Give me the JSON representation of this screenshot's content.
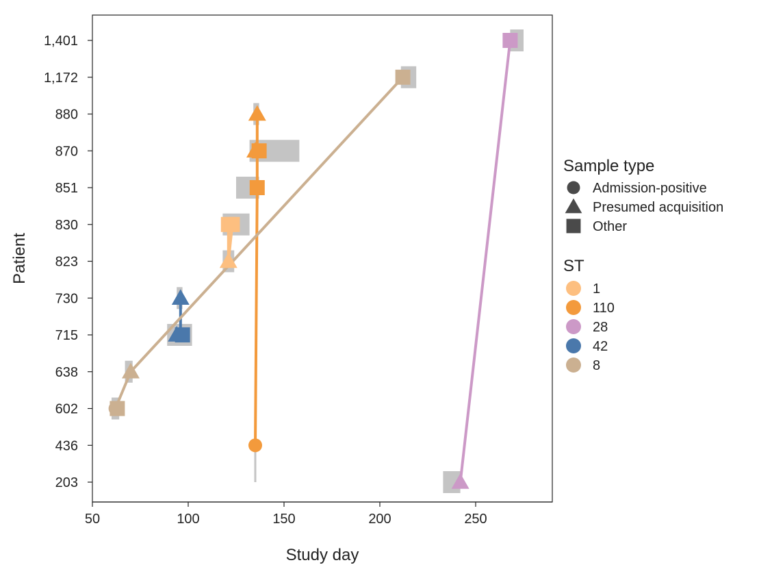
{
  "chart_data": {
    "type": "scatter",
    "xlabel": "Study day",
    "ylabel": "Patient",
    "xlim": [
      50,
      290
    ],
    "x_ticks": [
      50,
      100,
      150,
      200,
      250
    ],
    "y_categories": [
      "203",
      "436",
      "602",
      "638",
      "715",
      "730",
      "823",
      "830",
      "851",
      "870",
      "880",
      "1,172",
      "1,401"
    ],
    "grid": false,
    "legend_position": "right",
    "sample_type_legend": {
      "title": "Sample type",
      "items": [
        {
          "label": "Admission-positive",
          "shape": "circle"
        },
        {
          "label": "Presumed acquisition",
          "shape": "triangle"
        },
        {
          "label": "Other",
          "shape": "square"
        }
      ]
    },
    "st_legend": {
      "title": "ST",
      "items": [
        {
          "label": "1",
          "color": "#fdbf80"
        },
        {
          "label": "110",
          "color": "#f39a3c"
        },
        {
          "label": "28",
          "color": "#cc99c7"
        },
        {
          "label": "42",
          "color": "#4a78ab"
        },
        {
          "label": "8",
          "color": "#cbb091"
        }
      ]
    },
    "stays": [
      {
        "patient": "203",
        "start": 233,
        "end": 242
      },
      {
        "patient": "436",
        "start": 134,
        "end": 136,
        "whisker": [
          "203",
          "602"
        ]
      },
      {
        "patient": "602",
        "start": 60,
        "end": 64
      },
      {
        "patient": "638",
        "start": 67,
        "end": 71
      },
      {
        "patient": "715",
        "start": 89,
        "end": 102
      },
      {
        "patient": "730",
        "start": 94,
        "end": 97
      },
      {
        "patient": "823",
        "start": 118,
        "end": 124
      },
      {
        "patient": "830",
        "start": 118,
        "end": 132
      },
      {
        "patient": "851",
        "start": 125,
        "end": 137
      },
      {
        "patient": "870",
        "start": 132,
        "end": 158
      },
      {
        "patient": "880",
        "start": 134,
        "end": 137
      },
      {
        "patient": "1,172",
        "start": 211,
        "end": 219
      },
      {
        "patient": "1,401",
        "start": 268,
        "end": 275
      }
    ],
    "series": [
      {
        "name": "1",
        "color": "#fdbf80",
        "points": [
          {
            "x": 121,
            "y": "830",
            "shape": "square"
          },
          {
            "x": 123,
            "y": "830",
            "shape": "square"
          },
          {
            "x": 121,
            "y": "823",
            "shape": "triangle"
          }
        ]
      },
      {
        "name": "110",
        "color": "#f39a3c",
        "points": [
          {
            "x": 135,
            "y": "436",
            "shape": "circle"
          },
          {
            "x": 136,
            "y": "851",
            "shape": "square"
          },
          {
            "x": 137,
            "y": "870",
            "shape": "square"
          },
          {
            "x": 135,
            "y": "870",
            "shape": "triangle"
          },
          {
            "x": 136,
            "y": "880",
            "shape": "triangle"
          }
        ]
      },
      {
        "name": "28",
        "color": "#cc99c7",
        "points": [
          {
            "x": 242,
            "y": "203",
            "shape": "triangle"
          },
          {
            "x": 268,
            "y": "1,401",
            "shape": "square"
          }
        ]
      },
      {
        "name": "42",
        "color": "#4a78ab",
        "points": [
          {
            "x": 94,
            "y": "715",
            "shape": "triangle"
          },
          {
            "x": 97,
            "y": "715",
            "shape": "square"
          },
          {
            "x": 96,
            "y": "730",
            "shape": "triangle"
          }
        ]
      },
      {
        "name": "8",
        "color": "#cbb091",
        "points": [
          {
            "x": 62,
            "y": "602",
            "shape": "circle"
          },
          {
            "x": 63,
            "y": "602",
            "shape": "square"
          },
          {
            "x": 70,
            "y": "638",
            "shape": "triangle"
          },
          {
            "x": 212,
            "y": "1,172",
            "shape": "square"
          }
        ]
      }
    ],
    "links": [
      {
        "series": "1",
        "from": {
          "x": 121,
          "y": "823"
        },
        "to": {
          "x": 121,
          "y": "830"
        }
      },
      {
        "series": "1",
        "from": {
          "x": 121,
          "y": "823"
        },
        "to": {
          "x": 123,
          "y": "830"
        }
      },
      {
        "series": "110",
        "from": {
          "x": 135,
          "y": "436"
        },
        "to": {
          "x": 136,
          "y": "851"
        }
      },
      {
        "series": "110",
        "from": {
          "x": 136,
          "y": "851"
        },
        "to": {
          "x": 136,
          "y": "880"
        }
      },
      {
        "series": "28",
        "from": {
          "x": 242,
          "y": "203"
        },
        "to": {
          "x": 268,
          "y": "1,401"
        }
      },
      {
        "series": "42",
        "from": {
          "x": 96,
          "y": "715"
        },
        "to": {
          "x": 96,
          "y": "730"
        }
      },
      {
        "series": "8",
        "from": {
          "x": 62,
          "y": "602"
        },
        "to": {
          "x": 70,
          "y": "638"
        }
      },
      {
        "series": "8",
        "from": {
          "x": 70,
          "y": "638"
        },
        "to": {
          "x": 212,
          "y": "1,172"
        }
      }
    ]
  }
}
